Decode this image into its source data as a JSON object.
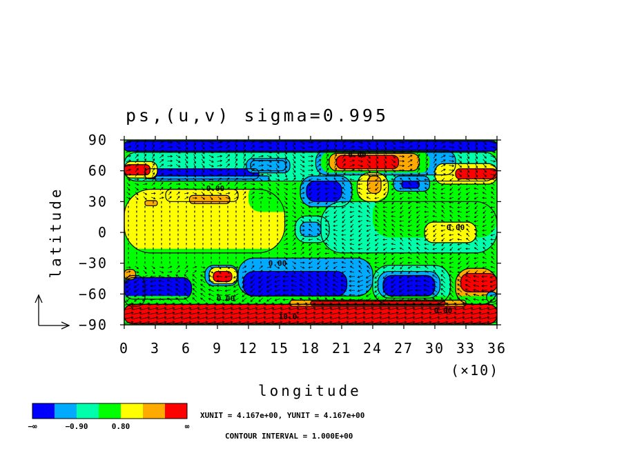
{
  "chart_data": {
    "type": "heatmap",
    "title": "ps,(u,v) sigma=0.995",
    "xlabel": "longitude",
    "ylabel": "latitude",
    "x_multiplier": "(×10)",
    "xlim": [
      0,
      36
    ],
    "ylim": [
      -90,
      90
    ],
    "x_ticks": [
      "0",
      "3",
      "6",
      "9",
      "12",
      "15",
      "18",
      "21",
      "24",
      "27",
      "30",
      "33",
      "36"
    ],
    "y_ticks": [
      "90",
      "60",
      "30",
      "0",
      "−30",
      "−60",
      "−90"
    ],
    "x_tick_values": [
      0,
      3,
      6,
      9,
      12,
      15,
      18,
      21,
      24,
      27,
      30,
      33,
      36
    ],
    "y_tick_values": [
      90,
      60,
      30,
      0,
      -30,
      -60,
      -90
    ],
    "colorbar": {
      "colors": [
        "#0000ff",
        "#00aaff",
        "#00ffaa",
        "#00ff00",
        "#ffff00",
        "#ffaa00",
        "#ff0000"
      ],
      "labels": [
        "−∞",
        "−0.90",
        "0.80",
        "∞"
      ]
    },
    "contour_labels": [
      {
        "text": "0.00",
        "lon": 22.5,
        "lat": 76
      },
      {
        "text": "0.00",
        "lon": 8.8,
        "lat": 43
      },
      {
        "text": "0.00",
        "lon": 32.0,
        "lat": 5
      },
      {
        "text": "0.00",
        "lon": 14.8,
        "lat": -30
      },
      {
        "text": "0.00",
        "lon": 9.8,
        "lat": -64
      },
      {
        "text": "0.00",
        "lon": 30.8,
        "lat": -76
      },
      {
        "text": "10.0",
        "lon": 15.8,
        "lat": -82
      }
    ],
    "field_regions": [
      {
        "level": 0,
        "lon": [
          0,
          36
        ],
        "lat": [
          79,
          89
        ]
      },
      {
        "level": 2,
        "lon": [
          0,
          36
        ],
        "lat": [
          50,
          78
        ]
      },
      {
        "level": 0,
        "lon": [
          2,
          13
        ],
        "lat": [
          52,
          62
        ]
      },
      {
        "level": 1,
        "lon": [
          3,
          14
        ],
        "lat": [
          50,
          55
        ]
      },
      {
        "level": 0,
        "lon": [
          12.2,
          15.6
        ],
        "lat": [
          60,
          70
        ]
      },
      {
        "level": 1,
        "lon": [
          11.8,
          16
        ],
        "lat": [
          58,
          72
        ]
      },
      {
        "level": 1,
        "lon": [
          18.5,
          32
        ],
        "lat": [
          56,
          80
        ]
      },
      {
        "level": 3,
        "lon": [
          19,
          29.5
        ],
        "lat": [
          58,
          79
        ]
      },
      {
        "level": 5,
        "lon": [
          19.8,
          28.5
        ],
        "lat": [
          60,
          77
        ]
      },
      {
        "level": 6,
        "lon": [
          20.5,
          26.5
        ],
        "lat": [
          62,
          75
        ]
      },
      {
        "level": 4,
        "lon": [
          22.5,
          25.5
        ],
        "lat": [
          30,
          58
        ]
      },
      {
        "level": 5,
        "lon": [
          23.5,
          24.8
        ],
        "lat": [
          38,
          55
        ]
      },
      {
        "level": 1,
        "lon": [
          26,
          29.5
        ],
        "lat": [
          40,
          55
        ]
      },
      {
        "level": 0,
        "lon": [
          26.8,
          28.5
        ],
        "lat": [
          43,
          50
        ]
      },
      {
        "level": 4,
        "lon": [
          30,
          36
        ],
        "lat": [
          47,
          67
        ]
      },
      {
        "level": 6,
        "lon": [
          32,
          36
        ],
        "lat": [
          52,
          62
        ]
      },
      {
        "level": 4,
        "lon": [
          0,
          3.2
        ],
        "lat": [
          53,
          69
        ]
      },
      {
        "level": 6,
        "lon": [
          0,
          2.5
        ],
        "lat": [
          56,
          66
        ]
      },
      {
        "level": 3,
        "lon": [
          0,
          10
        ],
        "lat": [
          28,
          50
        ]
      },
      {
        "level": 4,
        "lon": [
          0,
          15.5
        ],
        "lat": [
          -20,
          42
        ]
      },
      {
        "level": 3,
        "lon": [
          12,
          17.5
        ],
        "lat": [
          20,
          48
        ]
      },
      {
        "level": 4,
        "lon": [
          4,
          11
        ],
        "lat": [
          30,
          42
        ]
      },
      {
        "level": 5,
        "lon": [
          6.3,
          10.2
        ],
        "lat": [
          28,
          36
        ]
      },
      {
        "level": 5,
        "lon": [
          2,
          3.2
        ],
        "lat": [
          26,
          31
        ]
      },
      {
        "level": 1,
        "lon": [
          17,
          22
        ],
        "lat": [
          25,
          55
        ]
      },
      {
        "level": 0,
        "lon": [
          17.6,
          21
        ],
        "lat": [
          30,
          50
        ]
      },
      {
        "level": 2,
        "lon": [
          16.5,
          19.8
        ],
        "lat": [
          -10,
          16
        ]
      },
      {
        "level": 1,
        "lon": [
          17,
          19
        ],
        "lat": [
          -4,
          10
        ]
      },
      {
        "level": 3,
        "lon": [
          0,
          36
        ],
        "lat": [
          -40,
          -16
        ]
      },
      {
        "level": 2,
        "lon": [
          19,
          36
        ],
        "lat": [
          -20,
          30
        ]
      },
      {
        "level": 3,
        "lon": [
          24,
          36
        ],
        "lat": [
          -5,
          35
        ]
      },
      {
        "level": 4,
        "lon": [
          29,
          34
        ],
        "lat": [
          -10,
          10
        ]
      },
      {
        "level": 1,
        "lon": [
          0,
          2
        ],
        "lat": [
          -72,
          -42
        ]
      },
      {
        "level": 0,
        "lon": [
          0,
          6.5
        ],
        "lat": [
          -65,
          -44
        ]
      },
      {
        "level": 5,
        "lon": [
          0,
          1.1
        ],
        "lat": [
          -46,
          -36
        ]
      },
      {
        "level": 1,
        "lon": [
          7.8,
          11
        ],
        "lat": [
          -52,
          -32
        ]
      },
      {
        "level": 4,
        "lon": [
          8.2,
          10.9
        ],
        "lat": [
          -50,
          -34
        ]
      },
      {
        "level": 6,
        "lon": [
          8.6,
          10.4
        ],
        "lat": [
          -48,
          -38
        ]
      },
      {
        "level": 1,
        "lon": [
          11,
          24
        ],
        "lat": [
          -62,
          -25
        ]
      },
      {
        "level": 0,
        "lon": [
          11.5,
          21.5
        ],
        "lat": [
          -62,
          -38
        ]
      },
      {
        "level": 2,
        "lon": [
          24,
          31.5
        ],
        "lat": [
          -70,
          -32
        ]
      },
      {
        "level": 1,
        "lon": [
          24.5,
          30.5
        ],
        "lat": [
          -64,
          -38
        ]
      },
      {
        "level": 0,
        "lon": [
          25,
          30
        ],
        "lat": [
          -62,
          -42
        ]
      },
      {
        "level": 5,
        "lon": [
          32,
          36
        ],
        "lat": [
          -70,
          -35
        ]
      },
      {
        "level": 6,
        "lon": [
          32.5,
          36
        ],
        "lat": [
          -58,
          -40
        ]
      },
      {
        "level": 1,
        "lon": [
          35,
          36
        ],
        "lat": [
          -68,
          -58
        ]
      },
      {
        "level": 3,
        "lon": [
          0,
          36
        ],
        "lat": [
          -71,
          -62
        ]
      },
      {
        "level": 6,
        "lon": [
          0,
          36
        ],
        "lat": [
          -89,
          -70
        ]
      },
      {
        "level": 5,
        "lon": [
          16,
          33
        ],
        "lat": [
          -72,
          -66
        ]
      },
      {
        "level": 6,
        "lon": [
          18,
          31
        ],
        "lat": [
          -71,
          -67
        ]
      }
    ],
    "reference_vector": {
      "label": "XUNIT = 4.167e+00, YUNIT = 4.167e+00"
    },
    "contour_interval": "CONTOUR INTERVAL = 1.000E+00"
  },
  "colors": {
    "level_0": "#0000ff",
    "level_1": "#00aaff",
    "level_2": "#00ffaa",
    "level_3": "#00ff00",
    "level_4": "#ffff00",
    "level_5": "#ffaa00",
    "level_6": "#ff0000"
  }
}
